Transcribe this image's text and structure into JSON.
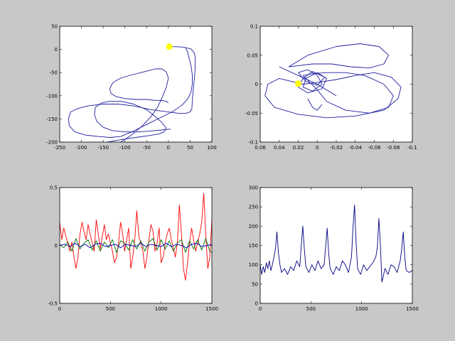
{
  "figure": {
    "background": "#c8c8c8",
    "axes_background": "#ffffff"
  },
  "chart_data": [
    {
      "type": "line",
      "title": "",
      "xlabel": "",
      "ylabel": "",
      "xlim": [
        -250,
        100
      ],
      "ylim": [
        -200,
        50
      ],
      "x_ticks": [
        -250,
        -200,
        -150,
        -100,
        -50,
        0,
        50,
        100
      ],
      "y_ticks": [
        -200,
        -150,
        -100,
        -50,
        0,
        50
      ],
      "x_tick_labels": [
        "-250",
        "-200",
        "-150",
        "-100",
        "-50",
        "0",
        "50",
        "100"
      ],
      "y_tick_labels": [
        "-200",
        "-150",
        "-100",
        "-50",
        "0",
        "50"
      ],
      "series": [
        {
          "color": "#1f1fa0",
          "x": [
            2,
            15,
            35,
            52,
            60,
            62,
            61,
            58,
            55,
            54,
            50,
            40,
            25,
            0,
            -40,
            -80,
            -115,
            -150,
            -185,
            -210,
            -225,
            -230,
            -228,
            -215,
            -190,
            -160,
            -135,
            -110,
            -80,
            -50,
            -20,
            10,
            32,
            45,
            52,
            55,
            55,
            52,
            48,
            44,
            40
          ],
          "y": [
            6,
            6,
            5,
            1,
            -8,
            -20,
            -50,
            -80,
            -110,
            -128,
            -135,
            -138,
            -138,
            -135,
            -130,
            -122,
            -118,
            -118,
            -122,
            -128,
            -135,
            -150,
            -165,
            -178,
            -185,
            -188,
            -190,
            -188,
            -176,
            -162,
            -148,
            -134,
            -120,
            -106,
            -92,
            -75,
            -55,
            -35,
            -20,
            -5,
            3
          ]
        },
        {
          "color": "#1f1fa0",
          "x": [
            -165,
            -160,
            -140,
            -110,
            -75,
            -45,
            -20,
            -10,
            -5,
            -15,
            -30,
            -50,
            -80,
            -110,
            -135,
            -155,
            -168,
            -170,
            -165,
            -150,
            -130,
            -100,
            -70,
            -40,
            -15,
            5
          ],
          "y": [
            -205,
            -205,
            -200,
            -195,
            -190,
            -186,
            -182,
            -178,
            -170,
            -158,
            -145,
            -130,
            -118,
            -112,
            -112,
            -116,
            -125,
            -140,
            -155,
            -168,
            -175,
            -178,
            -178,
            -176,
            -174,
            -172
          ]
        },
        {
          "color": "#1f1fa0",
          "x": [
            -130,
            -110,
            -85,
            -60,
            -40,
            -25,
            -15,
            -5,
            0,
            -5,
            -15,
            -30,
            -55,
            -85,
            -110,
            -128,
            -135,
            -132,
            -120,
            -100,
            -75,
            -50,
            -30,
            -15,
            -5,
            0
          ],
          "y": [
            -205,
            -200,
            -185,
            -165,
            -145,
            -125,
            -105,
            -82,
            -62,
            -48,
            -42,
            -42,
            -48,
            -55,
            -62,
            -72,
            -85,
            -95,
            -102,
            -106,
            -108,
            -108,
            -110,
            -110,
            -112,
            -115
          ]
        }
      ],
      "marker": {
        "x": 2,
        "y": 6,
        "color": "#ffff00"
      }
    },
    {
      "type": "line",
      "title": "",
      "xlabel": "",
      "ylabel": "",
      "xlim": [
        0.06,
        -0.1
      ],
      "ylim": [
        -0.1,
        0.1
      ],
      "x_ticks": [
        0.06,
        0.04,
        0.02,
        0,
        -0.02,
        -0.04,
        -0.06,
        -0.08,
        -0.1
      ],
      "y_ticks": [
        -0.1,
        -0.05,
        0,
        0.05,
        0.1
      ],
      "x_tick_labels": [
        "0.06",
        "0.04",
        "0.02",
        "0",
        "-0.02",
        "-0.04",
        "-0.06",
        "-0.08",
        "-0.1"
      ],
      "y_tick_labels": [
        "-0.1",
        "-0.05",
        "0",
        "0.05",
        "0.1"
      ],
      "series": [
        {
          "color": "#1f1fa0",
          "x": [
            0.02,
            0.04,
            0.052,
            0.055,
            0.045,
            0.02,
            -0.01,
            -0.04,
            -0.07,
            -0.085,
            -0.088,
            -0.078,
            -0.06,
            -0.04,
            -0.02,
            0,
            0.015,
            0.02
          ],
          "y": [
            0.002,
            0.01,
            0.0,
            -0.02,
            -0.04,
            -0.052,
            -0.058,
            -0.055,
            -0.045,
            -0.025,
            -0.005,
            0.012,
            0.02,
            0.015,
            0.008,
            0.003,
            0.0,
            0.002
          ]
        },
        {
          "color": "#1f1fa0",
          "x": [
            0.03,
            0.01,
            -0.02,
            -0.045,
            -0.065,
            -0.075,
            -0.07,
            -0.055,
            -0.035,
            -0.015,
            0.005,
            0.02,
            0.03
          ],
          "y": [
            0.03,
            0.05,
            0.065,
            0.07,
            0.065,
            0.05,
            0.035,
            0.028,
            0.03,
            0.035,
            0.035,
            0.032,
            0.03
          ]
        },
        {
          "color": "#1f1fa0",
          "x": [
            0.015,
            0.0,
            -0.01,
            -0.03,
            -0.055,
            -0.075,
            -0.08,
            -0.07,
            -0.05,
            -0.03,
            -0.01,
            0.005,
            0.015
          ],
          "y": [
            0.015,
            -0.01,
            -0.03,
            -0.045,
            -0.05,
            -0.04,
            -0.02,
            0.0,
            0.015,
            0.02,
            0.02,
            0.018,
            0.015
          ]
        },
        {
          "color": "#1f1fa0",
          "x": [
            0.02,
            0.01,
            0.0,
            -0.005,
            0.005,
            0.015,
            0.012,
            0.0,
            -0.01,
            -0.005,
            0.01,
            0.02,
            0.015,
            0.005,
            -0.008,
            0.0,
            0.012,
            0.02
          ],
          "y": [
            0.02,
            0.025,
            0.015,
            0.0,
            -0.012,
            -0.005,
            0.01,
            0.02,
            0.01,
            -0.008,
            -0.015,
            -0.005,
            0.01,
            0.022,
            0.012,
            -0.002,
            0.005,
            0.02
          ]
        },
        {
          "color": "#1f1fa0",
          "x": [
            0.04,
            0.02,
            0.0,
            -0.02
          ],
          "y": [
            0.03,
            0.015,
            0.0,
            -0.02
          ]
        },
        {
          "color": "#1f1fa0",
          "x": [
            0.01,
            0.005,
            0.0,
            -0.005
          ],
          "y": [
            -0.025,
            -0.04,
            -0.045,
            -0.035
          ]
        }
      ],
      "marker": {
        "x": 0.02,
        "y": 0.001,
        "color": "#ffff00"
      }
    },
    {
      "type": "line",
      "title": "",
      "xlabel": "",
      "ylabel": "",
      "xlim": [
        0,
        1500
      ],
      "ylim": [
        -0.5,
        0.5
      ],
      "x_ticks": [
        0,
        500,
        1000,
        1500
      ],
      "y_ticks": [
        -0.5,
        0,
        0.5
      ],
      "x_tick_labels": [
        "0",
        "500",
        "1000",
        "1500"
      ],
      "y_tick_labels": [
        "-0.5",
        "0",
        "0.5"
      ],
      "series": [
        {
          "color": "#ff0000",
          "x": [
            0,
            20,
            40,
            60,
            80,
            100,
            120,
            140,
            160,
            180,
            200,
            220,
            240,
            260,
            280,
            300,
            320,
            340,
            360,
            380,
            400,
            420,
            440,
            460,
            480,
            500,
            520,
            540,
            560,
            580,
            600,
            620,
            640,
            660,
            680,
            700,
            720,
            740,
            760,
            780,
            800,
            820,
            840,
            860,
            880,
            900,
            920,
            940,
            960,
            980,
            1000,
            1020,
            1040,
            1060,
            1080,
            1100,
            1120,
            1140,
            1160,
            1180,
            1200,
            1220,
            1240,
            1260,
            1280,
            1300,
            1320,
            1340,
            1360,
            1380,
            1400,
            1420,
            1440,
            1460,
            1480,
            1500
          ],
          "y": [
            0.2,
            0.05,
            0.15,
            0.08,
            0.02,
            -0.05,
            0.03,
            -0.1,
            -0.2,
            -0.1,
            0.1,
            0.2,
            0.12,
            0.05,
            0.18,
            0.1,
            0.02,
            -0.05,
            0.22,
            0.1,
            -0.03,
            0.08,
            0.18,
            0.05,
            0.1,
            0.02,
            -0.05,
            -0.15,
            -0.1,
            0.02,
            0.2,
            0.1,
            -0.05,
            0.05,
            0.15,
            -0.2,
            -0.1,
            0.05,
            0.3,
            0.08,
            0.02,
            -0.05,
            -0.2,
            -0.1,
            0.05,
            0.18,
            0.12,
            -0.05,
            0.02,
            0.15,
            -0.15,
            -0.1,
            0.02,
            0.1,
            0.15,
            0.05,
            -0.02,
            -0.1,
            0.02,
            0.35,
            0.1,
            -0.2,
            -0.3,
            -0.15,
            0.02,
            0.15,
            0.05,
            -0.05,
            0.02,
            0.1,
            0.2,
            0.45,
            0.1,
            -0.2,
            -0.1,
            0.22
          ]
        },
        {
          "color": "#007000",
          "x": [
            0,
            40,
            80,
            120,
            160,
            200,
            240,
            280,
            320,
            360,
            400,
            440,
            480,
            520,
            560,
            600,
            640,
            680,
            720,
            760,
            800,
            840,
            880,
            920,
            960,
            1000,
            1040,
            1080,
            1120,
            1160,
            1200,
            1240,
            1280,
            1320,
            1360,
            1400,
            1440,
            1480,
            1500
          ],
          "y": [
            0.01,
            -0.02,
            0.03,
            -0.05,
            0.06,
            -0.03,
            0.02,
            0.05,
            -0.04,
            0.04,
            -0.05,
            0.03,
            -0.02,
            0.05,
            -0.06,
            0.04,
            0.02,
            -0.04,
            0.05,
            -0.03,
            0.04,
            -0.05,
            0.03,
            0.06,
            -0.04,
            0.05,
            -0.03,
            0.04,
            -0.05,
            0.02,
            0.05,
            -0.06,
            0.04,
            -0.03,
            0.05,
            -0.04,
            0.06,
            -0.05,
            -0.06
          ]
        },
        {
          "color": "#0000c0",
          "x": [
            0,
            50,
            100,
            150,
            200,
            250,
            300,
            350,
            400,
            450,
            500,
            550,
            600,
            650,
            700,
            750,
            800,
            850,
            900,
            950,
            1000,
            1050,
            1100,
            1150,
            1200,
            1250,
            1300,
            1350,
            1400,
            1450,
            1500
          ],
          "y": [
            0.0,
            0.01,
            -0.01,
            0.02,
            -0.01,
            0.01,
            -0.02,
            0.01,
            0.02,
            -0.01,
            0.0,
            0.01,
            -0.02,
            0.01,
            0.0,
            -0.01,
            0.02,
            -0.01,
            0.01,
            0.0,
            -0.01,
            0.02,
            -0.01,
            0.01,
            0.0,
            -0.02,
            0.01,
            0.02,
            -0.01,
            0.0,
            0.01
          ]
        }
      ]
    },
    {
      "type": "line",
      "title": "",
      "xlabel": "",
      "ylabel": "",
      "xlim": [
        0,
        1500
      ],
      "ylim": [
        0,
        300
      ],
      "x_ticks": [
        0,
        500,
        1000,
        1500
      ],
      "y_ticks": [
        0,
        50,
        100,
        150,
        200,
        250,
        300
      ],
      "x_tick_labels": [
        "0",
        "500",
        "1000",
        "1500"
      ],
      "y_tick_labels": [
        "0",
        "50",
        "100",
        "150",
        "200",
        "250",
        "300"
      ],
      "series": [
        {
          "color": "#000080",
          "x": [
            0,
            15,
            30,
            45,
            60,
            75,
            90,
            105,
            120,
            135,
            150,
            165,
            180,
            195,
            210,
            240,
            270,
            300,
            330,
            360,
            390,
            405,
            420,
            435,
            450,
            480,
            510,
            540,
            570,
            600,
            630,
            645,
            660,
            675,
            690,
            720,
            750,
            780,
            810,
            840,
            870,
            900,
            915,
            930,
            945,
            960,
            990,
            1020,
            1050,
            1080,
            1110,
            1140,
            1155,
            1170,
            1185,
            1200,
            1230,
            1260,
            1290,
            1320,
            1350,
            1380,
            1395,
            1410,
            1425,
            1440,
            1470,
            1500
          ],
          "y": [
            100,
            75,
            95,
            80,
            105,
            90,
            110,
            85,
            100,
            120,
            140,
            185,
            130,
            100,
            80,
            90,
            75,
            95,
            85,
            110,
            95,
            150,
            200,
            140,
            95,
            80,
            100,
            85,
            110,
            90,
            100,
            145,
            195,
            130,
            90,
            75,
            95,
            85,
            110,
            100,
            80,
            120,
            195,
            255,
            160,
            90,
            75,
            100,
            85,
            95,
            105,
            120,
            145,
            220,
            150,
            55,
            90,
            75,
            100,
            95,
            80,
            110,
            140,
            185,
            120,
            85,
            80,
            85
          ]
        }
      ]
    }
  ]
}
